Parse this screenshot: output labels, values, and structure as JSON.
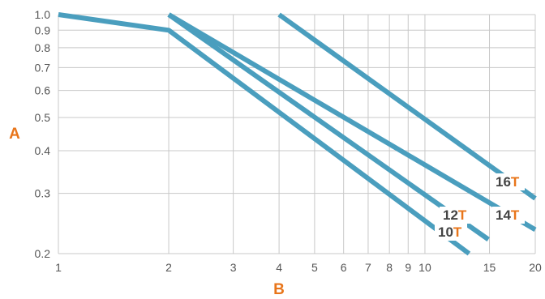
{
  "chart_data": {
    "type": "line",
    "xlabel": "B",
    "ylabel": "A",
    "x_scale": "log",
    "y_scale": "log",
    "xlim": [
      1,
      20
    ],
    "ylim": [
      0.2,
      1.0
    ],
    "grid": true,
    "x_ticks": [
      1,
      2,
      3,
      4,
      5,
      6,
      7,
      8,
      9,
      10,
      15,
      20
    ],
    "y_ticks": [
      0.2,
      0.3,
      0.4,
      0.5,
      0.6,
      0.7,
      0.8,
      0.9,
      1.0
    ],
    "x_tick_labels": [
      "1",
      "2",
      "3",
      "4",
      "5",
      "6",
      "7",
      "8",
      "9",
      "10",
      "15",
      "20"
    ],
    "y_tick_labels": [
      "0.2",
      "0.3",
      "0.4",
      "0.5",
      "0.6",
      "0.7",
      "0.8",
      "0.9",
      "1.0"
    ],
    "series": [
      {
        "name": "10T",
        "label_prefix": "10",
        "label_suffix": "T",
        "x": [
          1,
          2,
          13.2
        ],
        "y": [
          1.0,
          0.9,
          0.2
        ]
      },
      {
        "name": "12T",
        "label_prefix": "12",
        "label_suffix": "T",
        "x": [
          2,
          14.9
        ],
        "y": [
          1.0,
          0.22
        ]
      },
      {
        "name": "14T",
        "label_prefix": "14",
        "label_suffix": "T",
        "x": [
          2,
          20
        ],
        "y": [
          1.0,
          0.235
        ]
      },
      {
        "name": "16T",
        "label_prefix": "16",
        "label_suffix": "T",
        "x": [
          4,
          20
        ],
        "y": [
          1.0,
          0.29
        ]
      }
    ],
    "colors": {
      "line": "#4a9ebe",
      "grid": "#c8c8c8",
      "axis_label": "#e8751a",
      "label_number": "#444444",
      "label_accent": "#e8751a"
    }
  }
}
